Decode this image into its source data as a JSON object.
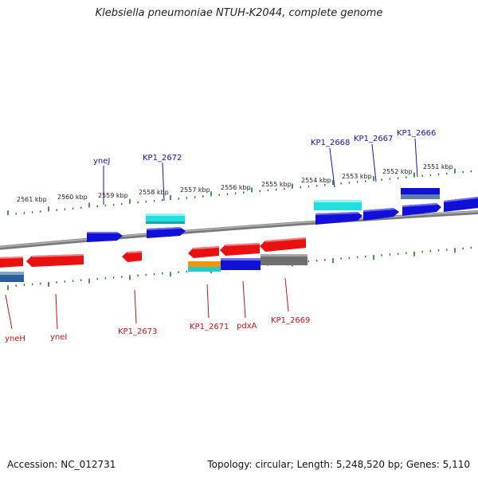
{
  "title": "Klebsiella pneumoniae NTUH-K2044, complete genome",
  "footer": {
    "accession": "Accession: NC_012731",
    "summary": "Topology: circular; Length: 5,248,520 bp; Genes: 5,110"
  },
  "colors": {
    "backbone": "#8a8a8a",
    "ticks": "#1f7a1f",
    "forward_gene": "#1010d8",
    "reverse_gene": "#e81010",
    "rna_gene": "#22dede",
    "other_gene": "#7a7a7a",
    "orange_gene": "#f0940a",
    "label_top": "#1111bb",
    "label_bottom": "#cc1111"
  },
  "scale_labels": [
    "2561 kbp",
    "2560 kbp",
    "2559 kbp",
    "2558 kbp",
    "2557 kbp",
    "2556 kbp",
    "2555 kbp",
    "2554 kbp",
    "2553 kbp",
    "2552 kbp",
    "2551 kbp"
  ],
  "top_labels": [
    "yneJ",
    "KP1_2672",
    "KP1_2668",
    "KP1_2667",
    "KP1_2666"
  ],
  "bottom_labels": [
    "yneH",
    "yneI",
    "KP1_2673",
    "KP1_2671",
    "pdxA",
    "KP1_2669"
  ]
}
